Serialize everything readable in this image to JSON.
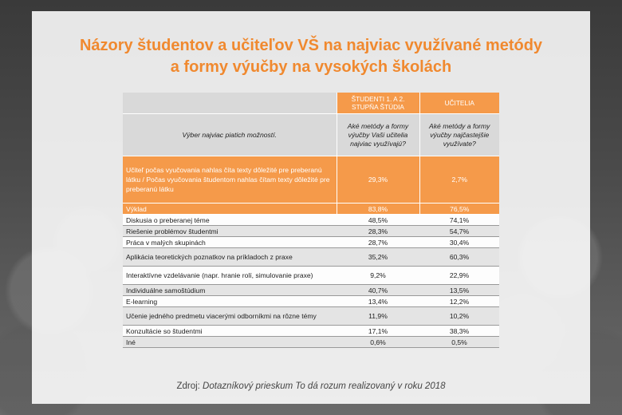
{
  "title": {
    "line1": "Názory študentov a učiteľov VŠ na najviac využívané metódy",
    "line2": "a formy výučby na vysokých školách"
  },
  "table": {
    "col_students": "ŠTUDENTI 1. A 2. STUPŇA ŠTÚDIA",
    "col_teachers": "UČITELIA",
    "instruction": "Výber najviac piatich možností.",
    "q_students": "Aké metódy a formy výučby Vaši učitelia najviac využívajú?",
    "q_teachers": "Aké metódy a formy výučby najčastejšie využívate?",
    "rows": [
      {
        "label": "Učiteľ počas vyučovania nahlas číta texty dôležité pre preberanú látku / Počas vyučovania študentom nahlas čítam texty dôležité pre preberanú látku",
        "students": "29,3%",
        "teachers": "2,7%"
      },
      {
        "label": "Výklad",
        "students": "83,8%",
        "teachers": "76,5%"
      },
      {
        "label": "Diskusia o preberanej téme",
        "students": "48,5%",
        "teachers": "74,1%"
      },
      {
        "label": "Riešenie problémov študentmi",
        "students": "28,3%",
        "teachers": "54,7%"
      },
      {
        "label": "Práca v malých skupinách",
        "students": "28,7%",
        "teachers": "30,4%"
      },
      {
        "label": "Aplikácia teoretických poznatkov na príkladoch z praxe",
        "students": "35,2%",
        "teachers": "60,3%"
      },
      {
        "label": "Interaktívne vzdelávanie (napr. hranie rolí, simulovanie praxe)",
        "students": "9,2%",
        "teachers": "22,9%"
      },
      {
        "label": "Individuálne samoštúdium",
        "students": "40,7%",
        "teachers": "13,5%"
      },
      {
        "label": "E-learning",
        "students": "13,4%",
        "teachers": "12,2%"
      },
      {
        "label": "Učenie jedného predmetu viacerými odborníkmi na rôzne témy",
        "students": "11,9%",
        "teachers": "10,2%"
      },
      {
        "label": "Konzultácie so študentmi",
        "students": "17,1%",
        "teachers": "38,3%"
      },
      {
        "label": "Iné",
        "students": "0,6%",
        "teachers": "0,5%"
      }
    ]
  },
  "source": {
    "prefix": "Zdroj: ",
    "text": "Dotazníkový prieskum To dá rozum realizovaný v roku 2018"
  },
  "colors": {
    "accent": "#f59a4a",
    "title": "#f0892f"
  }
}
